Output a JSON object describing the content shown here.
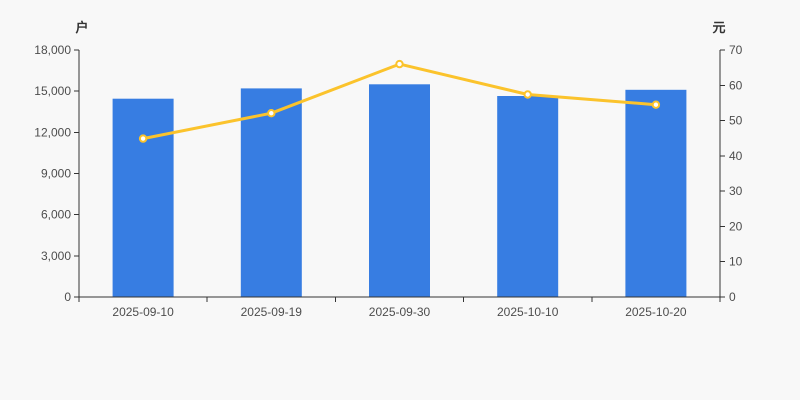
{
  "page": {
    "background_color": "#f8f8f8"
  },
  "chart_data": {
    "type": "combo",
    "categories": [
      "2025-09-10",
      "2025-09-19",
      "2025-09-30",
      "2025-10-10",
      "2025-10-20"
    ],
    "series": [
      {
        "name": "bar-series",
        "type": "bar",
        "axis": "left",
        "color": "#377de2",
        "values": [
          14450,
          15200,
          15500,
          14650,
          15100
        ]
      },
      {
        "name": "line-series",
        "type": "line",
        "axis": "right",
        "color": "#fbc32c",
        "marker_fill": "#ffffff",
        "values": [
          44.9,
          52.1,
          66.0,
          57.4,
          54.5
        ]
      }
    ],
    "left_axis": {
      "title": "户",
      "min": 0,
      "max": 18000,
      "tick_step": 3000,
      "tick_labels": [
        "0",
        "3,000",
        "6,000",
        "9,000",
        "12,000",
        "15,000",
        "18,000"
      ]
    },
    "right_axis": {
      "title": "元",
      "min": 0,
      "max": 70,
      "tick_step": 10,
      "tick_labels": [
        "0",
        "10",
        "20",
        "30",
        "40",
        "50",
        "60",
        "70"
      ]
    },
    "grid": false,
    "legend": false,
    "axis_color": "#333333",
    "label_color": "#4d4d4d",
    "tick_font_size": 12
  }
}
